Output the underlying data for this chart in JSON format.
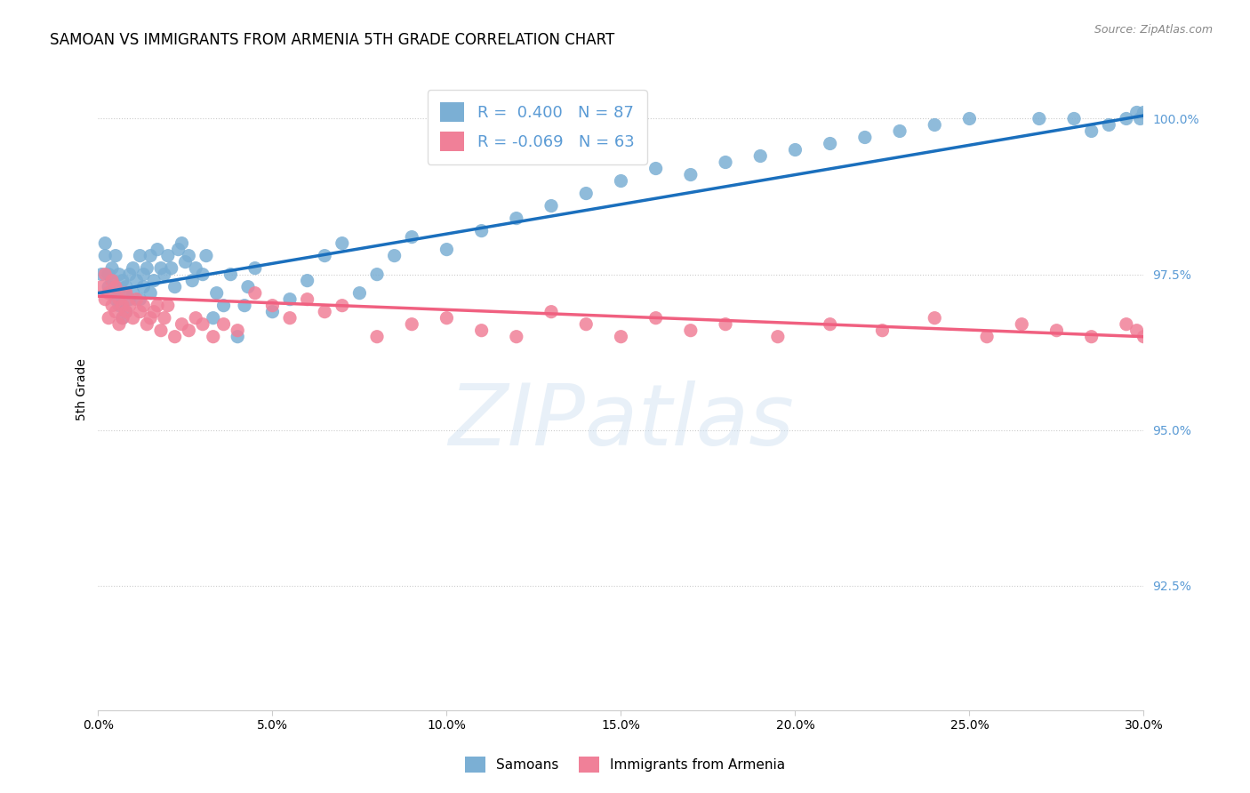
{
  "title": "SAMOAN VS IMMIGRANTS FROM ARMENIA 5TH GRADE CORRELATION CHART",
  "source": "Source: ZipAtlas.com",
  "ylabel": "5th Grade",
  "xmin": 0.0,
  "xmax": 0.3,
  "ymin": 90.5,
  "ymax": 100.8,
  "watermark": "ZIPatlas",
  "blue_scatter_x": [
    0.001,
    0.002,
    0.002,
    0.003,
    0.003,
    0.004,
    0.004,
    0.004,
    0.005,
    0.005,
    0.005,
    0.006,
    0.006,
    0.006,
    0.007,
    0.007,
    0.007,
    0.008,
    0.008,
    0.009,
    0.009,
    0.01,
    0.01,
    0.011,
    0.012,
    0.012,
    0.013,
    0.013,
    0.014,
    0.015,
    0.015,
    0.016,
    0.017,
    0.018,
    0.019,
    0.02,
    0.021,
    0.022,
    0.023,
    0.024,
    0.025,
    0.026,
    0.027,
    0.028,
    0.03,
    0.031,
    0.033,
    0.034,
    0.036,
    0.038,
    0.04,
    0.042,
    0.043,
    0.045,
    0.05,
    0.055,
    0.06,
    0.065,
    0.07,
    0.075,
    0.08,
    0.085,
    0.09,
    0.1,
    0.11,
    0.12,
    0.13,
    0.14,
    0.15,
    0.16,
    0.17,
    0.18,
    0.19,
    0.2,
    0.21,
    0.22,
    0.23,
    0.24,
    0.25,
    0.27,
    0.28,
    0.285,
    0.29,
    0.295,
    0.298,
    0.299,
    0.3
  ],
  "blue_scatter_y": [
    97.5,
    98.0,
    97.8,
    97.3,
    97.5,
    97.2,
    97.4,
    97.6,
    97.1,
    97.3,
    97.8,
    97.0,
    97.2,
    97.5,
    96.8,
    97.0,
    97.4,
    96.9,
    97.3,
    97.1,
    97.5,
    97.2,
    97.6,
    97.4,
    97.1,
    97.8,
    97.3,
    97.5,
    97.6,
    97.2,
    97.8,
    97.4,
    97.9,
    97.6,
    97.5,
    97.8,
    97.6,
    97.3,
    97.9,
    98.0,
    97.7,
    97.8,
    97.4,
    97.6,
    97.5,
    97.8,
    96.8,
    97.2,
    97.0,
    97.5,
    96.5,
    97.0,
    97.3,
    97.6,
    96.9,
    97.1,
    97.4,
    97.8,
    98.0,
    97.2,
    97.5,
    97.8,
    98.1,
    97.9,
    98.2,
    98.4,
    98.6,
    98.8,
    99.0,
    99.2,
    99.1,
    99.3,
    99.4,
    99.5,
    99.6,
    99.7,
    99.8,
    99.9,
    100.0,
    100.0,
    100.0,
    99.8,
    99.9,
    100.0,
    100.1,
    100.0,
    100.1
  ],
  "pink_scatter_x": [
    0.001,
    0.002,
    0.002,
    0.003,
    0.003,
    0.004,
    0.004,
    0.005,
    0.005,
    0.006,
    0.006,
    0.007,
    0.007,
    0.008,
    0.008,
    0.009,
    0.01,
    0.011,
    0.012,
    0.013,
    0.014,
    0.015,
    0.016,
    0.017,
    0.018,
    0.019,
    0.02,
    0.022,
    0.024,
    0.026,
    0.028,
    0.03,
    0.033,
    0.036,
    0.04,
    0.045,
    0.05,
    0.055,
    0.06,
    0.065,
    0.07,
    0.08,
    0.09,
    0.1,
    0.11,
    0.12,
    0.13,
    0.14,
    0.15,
    0.16,
    0.17,
    0.18,
    0.195,
    0.21,
    0.225,
    0.24,
    0.255,
    0.265,
    0.275,
    0.285,
    0.295,
    0.298,
    0.3
  ],
  "pink_scatter_y": [
    97.3,
    97.1,
    97.5,
    96.8,
    97.2,
    97.0,
    97.4,
    96.9,
    97.3,
    96.7,
    97.1,
    96.8,
    97.0,
    96.9,
    97.2,
    97.0,
    96.8,
    97.1,
    96.9,
    97.0,
    96.7,
    96.8,
    96.9,
    97.0,
    96.6,
    96.8,
    97.0,
    96.5,
    96.7,
    96.6,
    96.8,
    96.7,
    96.5,
    96.7,
    96.6,
    97.2,
    97.0,
    96.8,
    97.1,
    96.9,
    97.0,
    96.5,
    96.7,
    96.8,
    96.6,
    96.5,
    96.9,
    96.7,
    96.5,
    96.8,
    96.6,
    96.7,
    96.5,
    96.7,
    96.6,
    96.8,
    96.5,
    96.7,
    96.6,
    96.5,
    96.7,
    96.6,
    96.5
  ],
  "blue_line_x": [
    0.0,
    0.3
  ],
  "blue_line_y": [
    97.2,
    100.05
  ],
  "pink_line_x": [
    0.0,
    0.3
  ],
  "pink_line_y": [
    97.15,
    96.5
  ],
  "scatter_color_blue": "#7bafd4",
  "scatter_color_pink": "#f08098",
  "line_color_blue": "#1a6fbd",
  "line_color_pink": "#f06080",
  "title_fontsize": 12,
  "axis_label_fontsize": 10,
  "tick_fontsize": 10,
  "legend_fontsize": 13
}
